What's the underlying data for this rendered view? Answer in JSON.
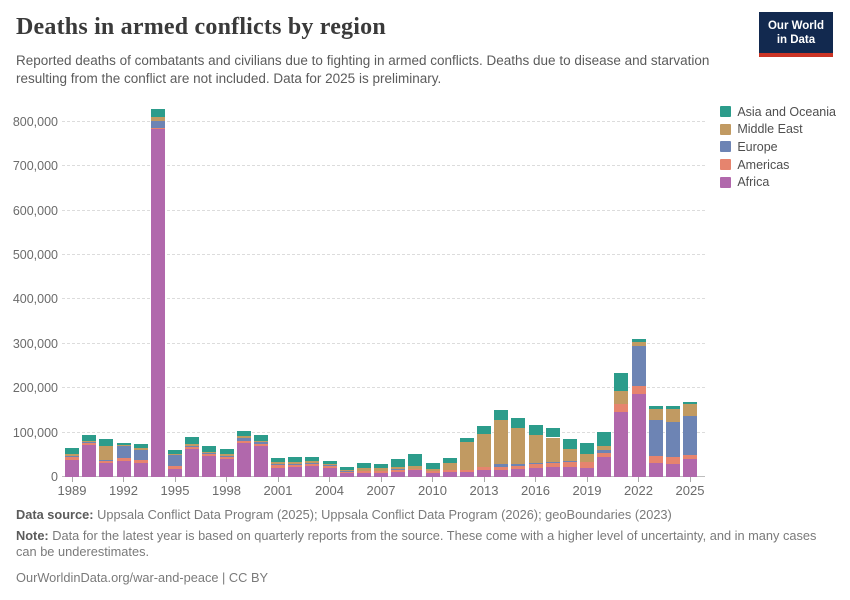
{
  "header": {
    "title": "Deaths in armed conflicts by region",
    "subtitle": "Reported deaths of combatants and civilians due to fighting in armed conflicts. Deaths due to disease and starvation resulting from the conflict are not included. Data for 2025 is preliminary.",
    "logo_line1": "Our World",
    "logo_line2": "in Data"
  },
  "brand": {
    "logo_bg": "#12294F",
    "logo_stripe": "#CB3425",
    "logo_text": "#FFFFFF"
  },
  "chart_data": {
    "type": "bar",
    "stacked": true,
    "title": "Deaths in armed conflicts by region",
    "xlabel": "",
    "ylabel": "",
    "ylim": [
      0,
      800000
    ],
    "ytick_interval": 100000,
    "ytick_labels": [
      "0",
      "100,000",
      "200,000",
      "300,000",
      "400,000",
      "500,000",
      "600,000",
      "700,000",
      "800,000"
    ],
    "grid": "horizontal-dashed",
    "legend_position": "top-right",
    "x": [
      1989,
      1990,
      1991,
      1992,
      1993,
      1994,
      1995,
      1996,
      1997,
      1998,
      1999,
      2000,
      2001,
      2002,
      2003,
      2004,
      2005,
      2006,
      2007,
      2008,
      2009,
      2010,
      2011,
      2012,
      2013,
      2014,
      2015,
      2016,
      2017,
      2018,
      2019,
      2020,
      2021,
      2022,
      2023,
      2024,
      2025
    ],
    "xticks": [
      1989,
      1992,
      1995,
      1998,
      2001,
      2004,
      2007,
      2010,
      2013,
      2016,
      2019,
      2022,
      2025
    ],
    "series": [
      {
        "name": "Africa",
        "color": "#B168AC",
        "values": [
          39000,
          72000,
          32000,
          36000,
          32000,
          783000,
          19000,
          64000,
          48000,
          41000,
          76000,
          70000,
          20000,
          22000,
          24000,
          20000,
          8000,
          9000,
          9000,
          12000,
          15000,
          9000,
          11000,
          12000,
          15000,
          16000,
          18000,
          20000,
          22000,
          22000,
          21000,
          44000,
          147000,
          186000,
          32000,
          30000,
          41000
        ]
      },
      {
        "name": "Americas",
        "color": "#E6846E",
        "values": [
          7000,
          5000,
          6000,
          6000,
          7000,
          3000,
          6000,
          5000,
          5000,
          6000,
          5000,
          5000,
          7000,
          7000,
          6000,
          5000,
          4000,
          4000,
          4000,
          4000,
          4000,
          5000,
          5000,
          4000,
          7000,
          7000,
          7000,
          11000,
          10000,
          13000,
          13000,
          11000,
          18000,
          19000,
          15000,
          15000,
          8000
        ]
      },
      {
        "name": "Europe",
        "color": "#6D84B4",
        "values": [
          1000,
          1000,
          1000,
          27000,
          21000,
          15000,
          24000,
          1000,
          1000,
          1000,
          7000,
          4000,
          2000,
          1000,
          1000,
          1000,
          1000,
          0,
          0,
          1000,
          0,
          0,
          0,
          0,
          0,
          7000,
          4000,
          1000,
          1000,
          1000,
          0,
          5000,
          0,
          91000,
          82000,
          80000,
          89000
        ]
      },
      {
        "name": "Middle East",
        "color": "#C19A62",
        "values": [
          4000,
          3000,
          31000,
          3000,
          5000,
          10000,
          3000,
          4000,
          3000,
          3000,
          4000,
          3000,
          4000,
          3000,
          5000,
          3000,
          2000,
          8000,
          8000,
          6000,
          5000,
          4000,
          15000,
          62000,
          74000,
          99000,
          81000,
          62000,
          56000,
          27000,
          18000,
          10000,
          29000,
          7000,
          24000,
          29000,
          26000
        ]
      },
      {
        "name": "Asia and Oceania",
        "color": "#2C9C8B",
        "values": [
          15000,
          13000,
          15000,
          4000,
          9000,
          17000,
          8000,
          16000,
          13000,
          12000,
          12000,
          12000,
          9000,
          11000,
          8000,
          6000,
          8000,
          10000,
          8000,
          17000,
          27000,
          13000,
          12000,
          10000,
          19000,
          22000,
          22000,
          24000,
          22000,
          22000,
          24000,
          31000,
          40000,
          7000,
          6000,
          6000,
          6000
        ]
      }
    ]
  },
  "footer": {
    "source_label": "Data source:",
    "source_text": " Uppsala Conflict Data Program (2025); Uppsala Conflict Data Program (2026); geoBoundaries (2023)",
    "note_label": "Note:",
    "note_text": " Data for the latest year is based on quarterly reports from the source. These come with a higher level of uncertainty, and in many cases can be underestimates.",
    "url_line": "OurWorldinData.org/war-and-peace | CC BY"
  }
}
